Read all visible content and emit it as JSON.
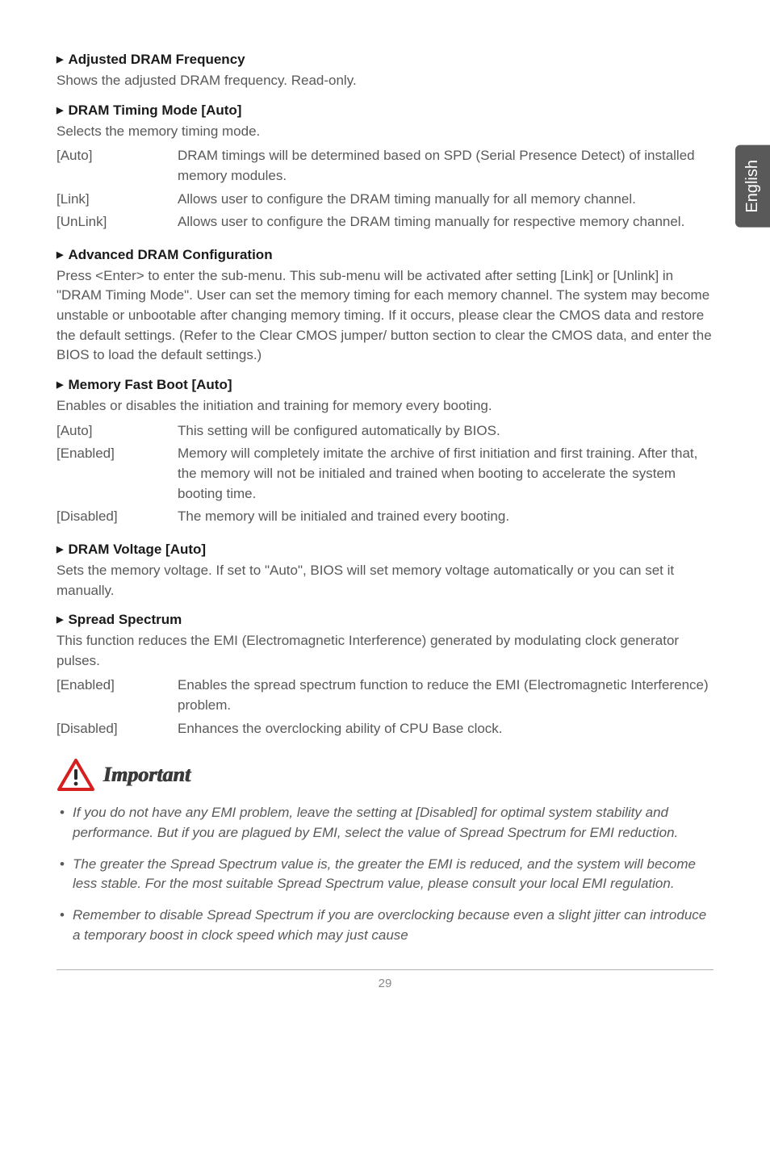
{
  "sideTab": "English",
  "sections": [
    {
      "heading": "Adjusted DRAM Frequency",
      "intro": [
        "Shows the adjusted DRAM frequency. Read-only."
      ]
    },
    {
      "heading": "DRAM Timing Mode [Auto]",
      "intro": [
        "Selects the memory timing mode."
      ],
      "options": [
        {
          "key": "[Auto]",
          "val": "DRAM timings will be determined based on SPD (Serial Presence Detect) of installed memory modules."
        },
        {
          "key": "[Link]",
          "val": "Allows user to configure the DRAM timing manually for all memory channel."
        },
        {
          "key": "[UnLink]",
          "val": "Allows user to configure the DRAM timing manually for respective memory channel."
        }
      ]
    },
    {
      "heading": "Advanced DRAM Configuration",
      "intro": [
        "Press <Enter> to enter the sub-menu. This sub-menu will be activated after setting [Link] or [Unlink] in \"DRAM Timing Mode\". User can set the memory timing for each memory channel. The system may become unstable or unbootable after changing memory timing. If it occurs, please clear the CMOS data and restore the default settings. (Refer to the Clear CMOS jumper/ button section to clear the CMOS data, and enter the BIOS to load the default settings.)"
      ]
    },
    {
      "heading": "Memory Fast Boot [Auto]",
      "intro": [
        "Enables or disables the initiation and training for memory every booting."
      ],
      "options": [
        {
          "key": "[Auto]",
          "val": "This setting will be configured automatically by BIOS."
        },
        {
          "key": "[Enabled]",
          "val": "Memory will completely imitate the archive of first initiation and first training. After that, the memory will not be initialed and trained when booting to accelerate the system booting time."
        },
        {
          "key": "[Disabled]",
          "val": "The memory will be initialed and trained every booting."
        }
      ]
    },
    {
      "heading": "DRAM Voltage [Auto]",
      "intro": [
        "Sets the memory voltage. If set to \"Auto\",  BIOS will set memory voltage automatically or you can set it manually."
      ]
    },
    {
      "heading": "Spread Spectrum",
      "intro": [
        "This function reduces the EMI (Electromagnetic Interference) generated by modulating clock generator pulses."
      ],
      "options": [
        {
          "key": "[Enabled]",
          "val": "Enables the spread spectrum function to reduce the EMI (Electromagnetic Interference) problem."
        },
        {
          "key": "[Disabled]",
          "val": "Enhances the overclocking ability of CPU Base clock."
        }
      ]
    }
  ],
  "important": {
    "label": "Important",
    "bullets": [
      "If you do not have any EMI problem, leave the setting at [Disabled] for optimal system stability and performance. But if you are plagued by EMI, select the value of Spread Spectrum for EMI reduction.",
      "The greater the Spread Spectrum value is, the greater the EMI is reduced, and the system will become less stable. For the most suitable Spread Spectrum value, please consult your local EMI regulation.",
      "Remember to disable Spread Spectrum if you are overclocking because even a slight jitter can introduce a temporary boost in clock speed which may just cause"
    ],
    "iconColors": {
      "stroke": "#d62020",
      "fill": "#ffffff",
      "bang": "#2a2a2a"
    }
  },
  "pageNumber": "29"
}
